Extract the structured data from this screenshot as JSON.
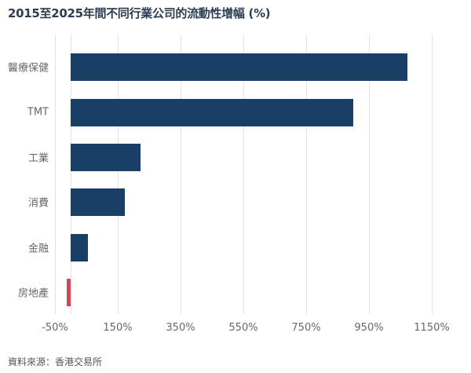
{
  "title": "2015至2025年間不同行業公司的流動性增幅 (%)",
  "source": "資料來源：香港交易所",
  "colors": {
    "positive": "#1a3f66",
    "negative": "#e0405a",
    "grid": "#e2e2e2"
  },
  "chart_data": {
    "type": "bar",
    "orientation": "horizontal",
    "title": "2015至2025年間不同行業公司的流動性增幅 (%)",
    "categories": [
      "醫療保健",
      "TMT",
      "工業",
      "消費",
      "金融",
      "房地產"
    ],
    "values": [
      1073,
      900,
      222,
      172,
      55,
      -12
    ],
    "xlabel": "",
    "ylabel": "",
    "xlim": [
      -50,
      1150
    ],
    "xticks": [
      "-50%",
      "150%",
      "350%",
      "550%",
      "750%",
      "950%",
      "1150%"
    ],
    "grid": true,
    "legend": null
  }
}
